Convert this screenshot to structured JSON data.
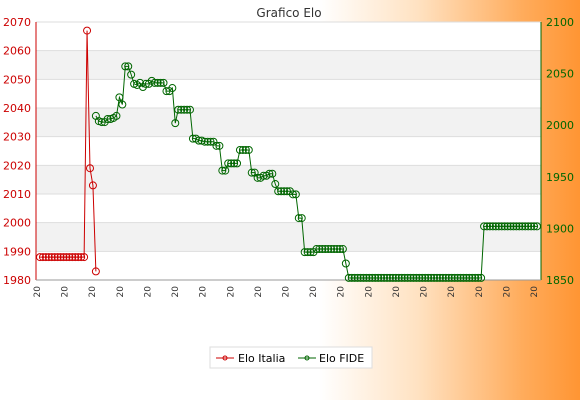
{
  "chart_data": {
    "type": "line",
    "title": "Grafico Elo",
    "grid": true,
    "legend_position": "bottom-center",
    "left_axis": {
      "range": [
        1980,
        2070
      ],
      "ticks": [
        1980,
        1990,
        2000,
        2010,
        2020,
        2030,
        2040,
        2050,
        2060,
        2070
      ],
      "color": "#cc0000"
    },
    "right_axis": {
      "range": [
        1850,
        2100
      ],
      "ticks": [
        1850,
        1900,
        1950,
        2000,
        2050,
        2100
      ],
      "color": "#006600"
    },
    "x_tick_labels": [
      "20",
      "20",
      "20",
      "20",
      "20",
      "20",
      "20",
      "20",
      "20",
      "20",
      "20",
      "20",
      "20",
      "20",
      "20",
      "20",
      "20",
      "20",
      "20"
    ],
    "series": [
      {
        "name": "Elo Italia",
        "axis": "left",
        "color": "#cc0000",
        "values": [
          1988,
          1988,
          1988,
          1988,
          1988,
          1988,
          1988,
          1988,
          1988,
          1988,
          1988,
          1988,
          1988,
          1988,
          1988,
          1988,
          2067,
          2019,
          2013,
          1983
        ]
      },
      {
        "name": "Elo FIDE",
        "axis": "right",
        "color": "#006600",
        "values": [
          null,
          null,
          null,
          null,
          null,
          null,
          null,
          null,
          null,
          null,
          null,
          null,
          null,
          null,
          null,
          null,
          null,
          null,
          null,
          2009,
          2004,
          2003,
          2003,
          2006,
          2006,
          2007,
          2009,
          2027,
          2020,
          2057,
          2057,
          2049,
          2040,
          2039,
          2041,
          2037,
          2040,
          2040,
          2043,
          2041,
          2041,
          2041,
          2041,
          2033,
          2033,
          2036,
          2002,
          2015,
          2015,
          2015,
          2015,
          2015,
          1987,
          1987,
          1985,
          1985,
          1984,
          1984,
          1984,
          1984,
          1980,
          1980,
          1956,
          1956,
          1963,
          1963,
          1963,
          1963,
          1976,
          1976,
          1976,
          1976,
          1954,
          1954,
          1949,
          1949,
          1951,
          1951,
          1953,
          1953,
          1943,
          1936,
          1936,
          1936,
          1936,
          1936,
          1933,
          1933,
          1910,
          1910,
          1877,
          1877,
          1877,
          1877,
          1880,
          1880,
          1880,
          1880,
          1880,
          1880,
          1880,
          1880,
          1880,
          1880,
          1866,
          1852,
          1852,
          1852,
          1852,
          1852,
          1852,
          1852,
          1852,
          1852,
          1852,
          1852,
          1852,
          1852,
          1852,
          1852,
          1852,
          1852,
          1852,
          1852,
          1852,
          1852,
          1852,
          1852,
          1852,
          1852,
          1852,
          1852,
          1852,
          1852,
          1852,
          1852,
          1852,
          1852,
          1852,
          1852,
          1852,
          1852,
          1852,
          1852,
          1852,
          1852,
          1852,
          1852,
          1852,
          1852,
          1852,
          1902,
          1902,
          1902,
          1902,
          1902,
          1902,
          1902,
          1902,
          1902,
          1902,
          1902,
          1902,
          1902,
          1902,
          1902,
          1902,
          1902,
          1902,
          1902
        ]
      }
    ]
  }
}
